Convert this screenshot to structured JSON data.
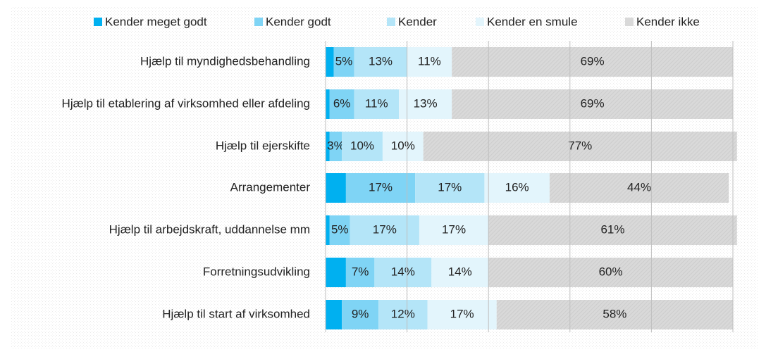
{
  "chart_data": {
    "type": "stacked-bar-horizontal",
    "categories": [
      "Hjælp til myndighedsbehandling",
      "Hjælp til etablering af virksomhed eller afdeling",
      "Hjælp til ejerskifte",
      "Arrangementer",
      "Hjælp til arbejdskraft, uddannelse mm",
      "Forretningsudvikling",
      "Hjælp til start af virksomhed"
    ],
    "series": [
      {
        "name": "Kender meget godt",
        "color": "#00b0f0",
        "values": [
          2,
          1,
          1,
          5,
          1,
          5,
          4
        ]
      },
      {
        "name": "Kender godt",
        "color": "#7fd4f5",
        "values": [
          5,
          6,
          3,
          17,
          5,
          7,
          9
        ],
        "value_labels": [
          "5%",
          "6%",
          "3%",
          "17%",
          "5%",
          "7%",
          "9%"
        ]
      },
      {
        "name": "Kender",
        "color": "#b4e5f8",
        "values": [
          13,
          11,
          10,
          17,
          17,
          14,
          12
        ],
        "value_labels": [
          "13%",
          "11%",
          "10%",
          "17%",
          "17%",
          "14%",
          "12%"
        ]
      },
      {
        "name": "Kender en smule",
        "color": "#e3f5fc",
        "values": [
          11,
          13,
          10,
          16,
          17,
          14,
          17
        ],
        "value_labels": [
          "11%",
          "13%",
          "10%",
          "16%",
          "17%",
          "14%",
          "17%"
        ]
      },
      {
        "name": "Kender ikke",
        "color": "#d9d9d9",
        "values": [
          69,
          69,
          77,
          44,
          61,
          60,
          58
        ],
        "value_labels": [
          "69%",
          "69%",
          "77%",
          "44%",
          "61%",
          "60%",
          "58%"
        ]
      }
    ],
    "xlim": [
      0,
      100
    ],
    "xticks": [
      0,
      20,
      40,
      60,
      80,
      100
    ],
    "grid": true,
    "legend": "top"
  }
}
